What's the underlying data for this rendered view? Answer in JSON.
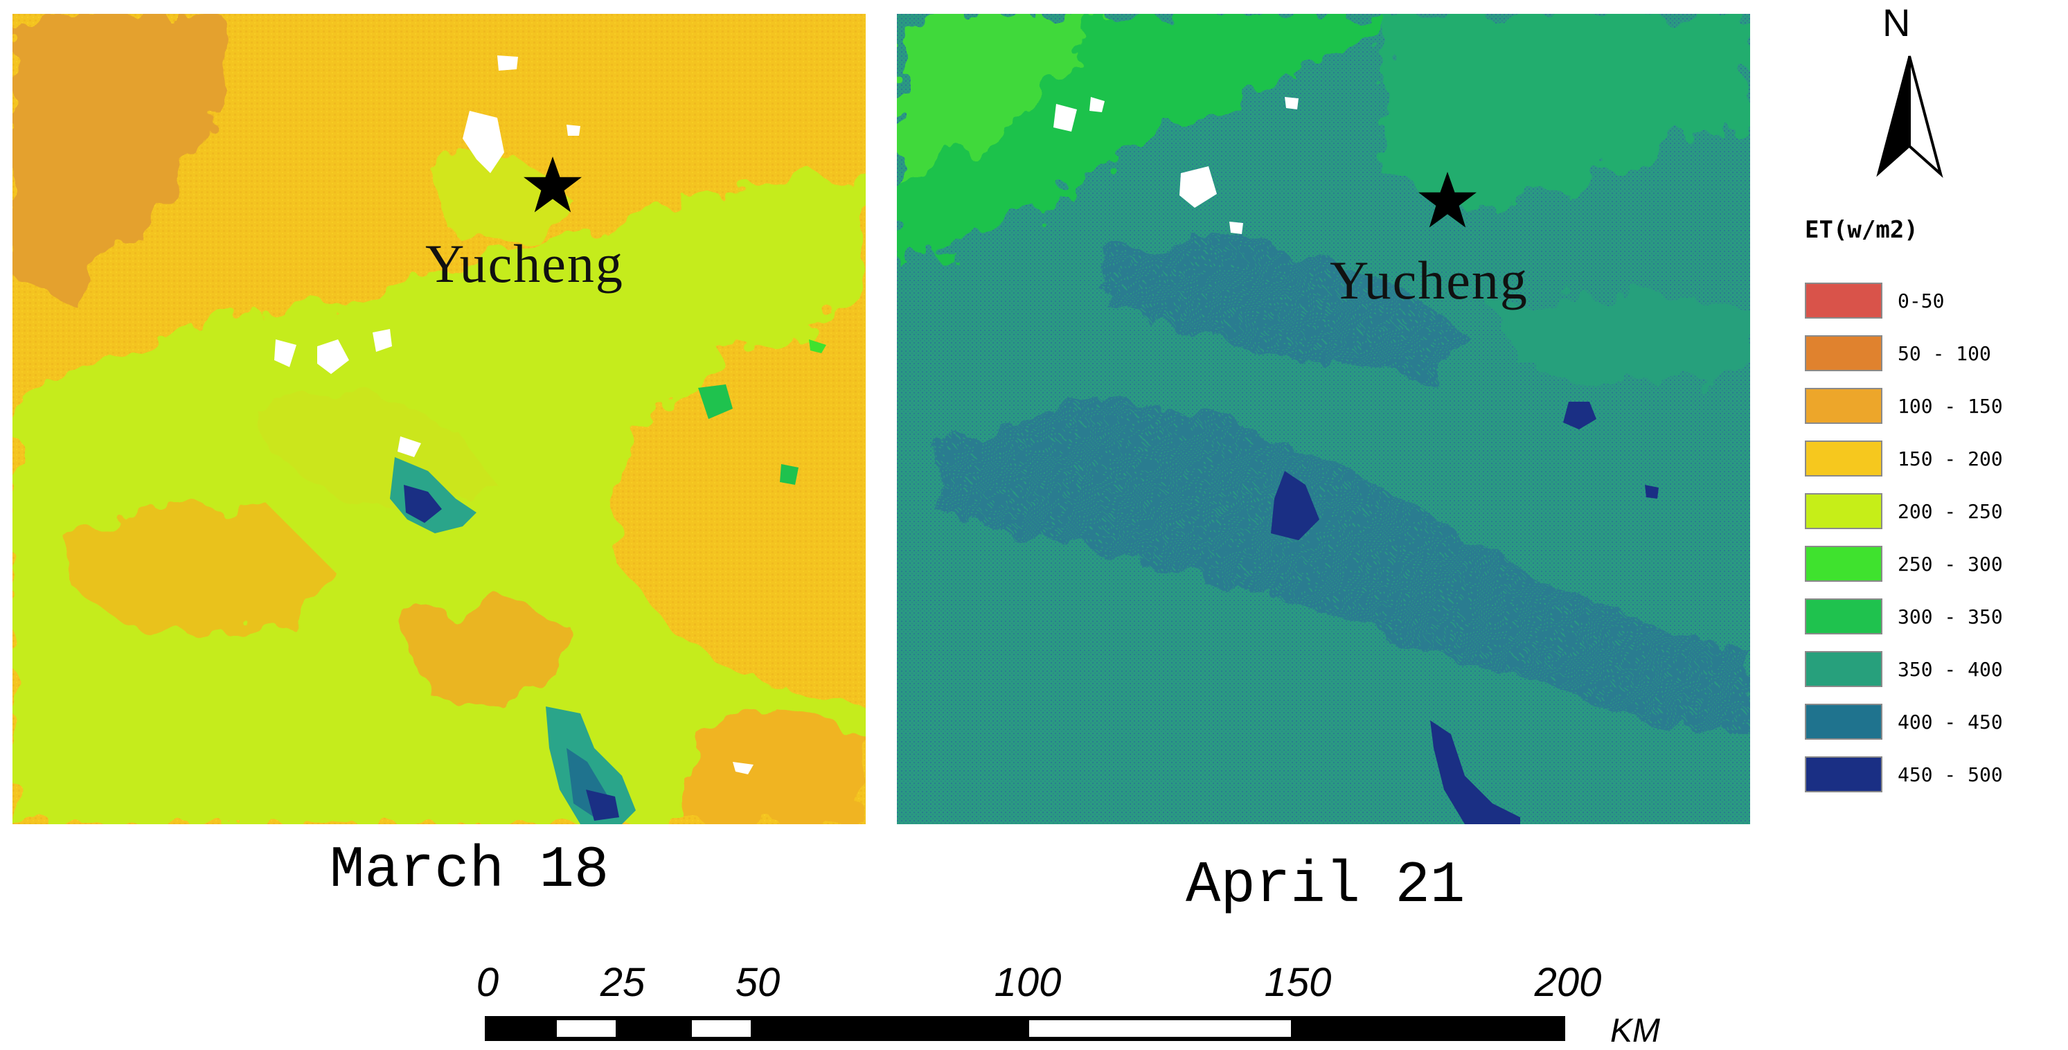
{
  "maps": [
    {
      "id": "left",
      "caption": "March 18",
      "city_label": "Yucheng"
    },
    {
      "id": "right",
      "caption": "April 21",
      "city_label": "Yucheng"
    }
  ],
  "north_arrow": {
    "letter": "N"
  },
  "legend": {
    "title": "ET(w/m2)",
    "items": [
      {
        "label": "0-50",
        "color": "#d9534a"
      },
      {
        "label": "50 - 100",
        "color": "#e0822e"
      },
      {
        "label": "100 - 150",
        "color": "#eda62a"
      },
      {
        "label": "150 - 200",
        "color": "#f6c81e"
      },
      {
        "label": "200 - 250",
        "color": "#c6ee18"
      },
      {
        "label": "250 - 300",
        "color": "#3fe22e"
      },
      {
        "label": "300 - 350",
        "color": "#1fc24e"
      },
      {
        "label": "350 - 400",
        "color": "#27a07c"
      },
      {
        "label": "400 - 450",
        "color": "#1f738e"
      },
      {
        "label": "450 - 500",
        "color": "#1a2f84"
      }
    ]
  },
  "scale_bar": {
    "unit": "KM",
    "ticks": [
      {
        "label": "0",
        "km": 0
      },
      {
        "label": "25",
        "km": 25
      },
      {
        "label": "50",
        "km": 50
      },
      {
        "label": "100",
        "km": 100
      },
      {
        "label": "150",
        "km": 150
      },
      {
        "label": "200",
        "km": 200
      }
    ],
    "max_km": 200
  }
}
